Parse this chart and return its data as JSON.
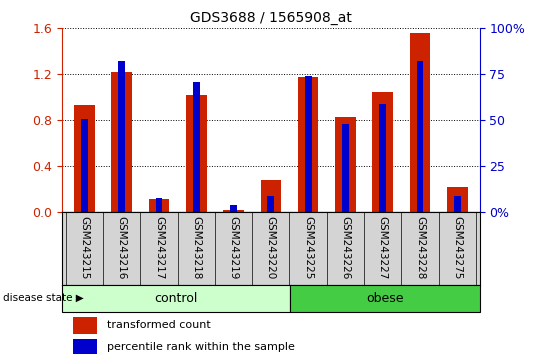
{
  "title": "GDS3688 / 1565908_at",
  "categories": [
    "GSM243215",
    "GSM243216",
    "GSM243217",
    "GSM243218",
    "GSM243219",
    "GSM243220",
    "GSM243225",
    "GSM243226",
    "GSM243227",
    "GSM243228",
    "GSM243275"
  ],
  "red_values": [
    0.93,
    1.22,
    0.12,
    1.02,
    0.02,
    0.28,
    1.18,
    0.83,
    1.05,
    1.56,
    0.22
  ],
  "blue_pct": [
    51,
    82,
    8,
    71,
    4,
    9,
    74,
    48,
    59,
    82,
    9
  ],
  "red_color": "#cc2200",
  "blue_color": "#0000cc",
  "ylim_left": [
    0,
    1.6
  ],
  "ylim_right": [
    0,
    100
  ],
  "yticks_left": [
    0,
    0.4,
    0.8,
    1.2,
    1.6
  ],
  "yticks_right": [
    0,
    25,
    50,
    75,
    100
  ],
  "right_tick_labels": [
    "0%",
    "25",
    "50",
    "75",
    "100%"
  ],
  "groups": [
    {
      "label": "control",
      "start": 0,
      "end": 6,
      "color": "#ccffcc"
    },
    {
      "label": "obese",
      "start": 6,
      "end": 11,
      "color": "#44cc44"
    }
  ],
  "group_label": "disease state",
  "legend_items": [
    {
      "label": "transformed count",
      "color": "#cc2200"
    },
    {
      "label": "percentile rank within the sample",
      "color": "#0000cc"
    }
  ],
  "red_bar_width": 0.55,
  "blue_bar_width": 0.18,
  "background_color": "#ffffff",
  "plot_bg_color": "#ffffff",
  "tick_color_left": "#cc2200",
  "tick_color_right": "#0000cc",
  "box_bg_color": "#d4d4d4",
  "title_fontsize": 10,
  "axis_fontsize": 9,
  "label_fontsize": 7.5,
  "legend_fontsize": 8
}
